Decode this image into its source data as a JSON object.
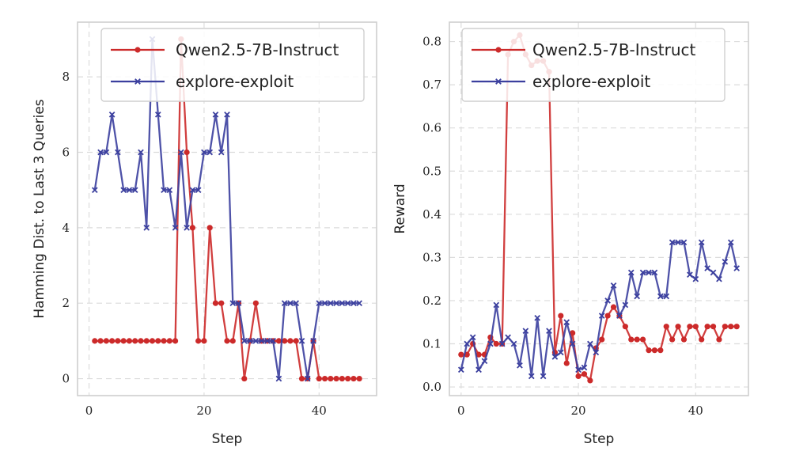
{
  "chart_data": [
    {
      "type": "line",
      "title": "",
      "xlabel": "Step",
      "ylabel": "Hamming Dist. to Last 3 Queries",
      "xlim": [
        -2,
        50
      ],
      "ylim": [
        -0.45,
        9.45
      ],
      "xticks": [
        0,
        20,
        40
      ],
      "yticks": [
        0,
        2,
        4,
        6,
        8
      ],
      "legend": "top-right",
      "series": [
        {
          "name": "Qwen2.5-7B-Instruct",
          "color": "#cc2a2a",
          "marker": "circle",
          "x": [
            1,
            2,
            3,
            4,
            5,
            6,
            7,
            8,
            9,
            10,
            11,
            12,
            13,
            14,
            15,
            16,
            17,
            18,
            19,
            20,
            21,
            22,
            23,
            24,
            25,
            26,
            27,
            28,
            29,
            30,
            31,
            32,
            33,
            34,
            35,
            36,
            37,
            38,
            39,
            40,
            41,
            42,
            43,
            44,
            45,
            46,
            47
          ],
          "values": [
            1,
            1,
            1,
            1,
            1,
            1,
            1,
            1,
            1,
            1,
            1,
            1,
            1,
            1,
            1,
            9,
            6,
            4,
            1,
            1,
            4,
            2,
            2,
            1,
            1,
            2,
            0,
            1,
            2,
            1,
            1,
            1,
            1,
            1,
            1,
            1,
            0,
            0,
            1,
            0,
            0,
            0,
            0,
            0,
            0,
            0,
            0
          ]
        },
        {
          "name": "explore-exploit",
          "color": "#3b3f9e",
          "marker": "x",
          "x": [
            1,
            2,
            3,
            4,
            5,
            6,
            7,
            8,
            9,
            10,
            11,
            12,
            13,
            14,
            15,
            16,
            17,
            18,
            19,
            20,
            21,
            22,
            23,
            24,
            25,
            26,
            27,
            28,
            29,
            30,
            31,
            32,
            33,
            34,
            35,
            36,
            37,
            38,
            39,
            40,
            41,
            42,
            43,
            44,
            45,
            46,
            47
          ],
          "values": [
            5,
            6,
            6,
            7,
            6,
            5,
            5,
            5,
            6,
            4,
            9,
            7,
            5,
            5,
            4,
            6,
            4,
            5,
            5,
            6,
            6,
            7,
            6,
            7,
            2,
            2,
            1,
            1,
            1,
            1,
            1,
            1,
            0,
            2,
            2,
            2,
            1,
            0,
            1,
            2,
            2,
            2,
            2,
            2,
            2,
            2,
            2
          ]
        }
      ]
    },
    {
      "type": "line",
      "title": "",
      "xlabel": "Step",
      "ylabel": "Reward",
      "xlim": [
        -2,
        49
      ],
      "ylim": [
        -0.02,
        0.845
      ],
      "xticks": [
        0,
        20,
        40
      ],
      "yticks": [
        0.0,
        0.1,
        0.2,
        0.3,
        0.4,
        0.5,
        0.6,
        0.7,
        0.8
      ],
      "legend": "top-right",
      "series": [
        {
          "name": "Qwen2.5-7B-Instruct",
          "color": "#cc2a2a",
          "marker": "circle",
          "x": [
            0,
            1,
            2,
            3,
            4,
            5,
            6,
            7,
            8,
            9,
            10,
            11,
            12,
            13,
            14,
            15,
            16,
            17,
            18,
            19,
            20,
            21,
            22,
            23,
            24,
            25,
            26,
            27,
            28,
            29,
            30,
            31,
            32,
            33,
            34,
            35,
            36,
            37,
            38,
            39,
            40,
            41,
            42,
            43,
            44,
            45,
            46,
            47
          ],
          "values": [
            0.075,
            0.075,
            0.1,
            0.075,
            0.075,
            0.115,
            0.1,
            0.1,
            0.77,
            0.8,
            0.815,
            0.77,
            0.745,
            0.755,
            0.755,
            0.73,
            0.08,
            0.165,
            0.055,
            0.125,
            0.025,
            0.03,
            0.015,
            0.09,
            0.11,
            0.165,
            0.185,
            0.165,
            0.14,
            0.11,
            0.11,
            0.11,
            0.085,
            0.085,
            0.085,
            0.14,
            0.11,
            0.14,
            0.11,
            0.14,
            0.14,
            0.11,
            0.14,
            0.14,
            0.11,
            0.14,
            0.14,
            0.14
          ]
        },
        {
          "name": "explore-exploit",
          "color": "#3b3f9e",
          "marker": "x",
          "x": [
            0,
            1,
            2,
            3,
            4,
            5,
            6,
            7,
            8,
            9,
            10,
            11,
            12,
            13,
            14,
            15,
            16,
            17,
            18,
            19,
            20,
            21,
            22,
            23,
            24,
            25,
            26,
            27,
            28,
            29,
            30,
            31,
            32,
            33,
            34,
            35,
            36,
            37,
            38,
            39,
            40,
            41,
            42,
            43,
            44,
            45,
            46,
            47
          ],
          "values": [
            0.04,
            0.1,
            0.115,
            0.04,
            0.06,
            0.1,
            0.19,
            0.1,
            0.115,
            0.1,
            0.05,
            0.13,
            0.025,
            0.16,
            0.025,
            0.13,
            0.07,
            0.08,
            0.15,
            0.1,
            0.04,
            0.045,
            0.1,
            0.08,
            0.165,
            0.2,
            0.235,
            0.165,
            0.19,
            0.265,
            0.21,
            0.265,
            0.265,
            0.265,
            0.21,
            0.21,
            0.335,
            0.335,
            0.335,
            0.26,
            0.25,
            0.335,
            0.275,
            0.265,
            0.25,
            0.29,
            0.335,
            0.275
          ]
        }
      ]
    }
  ]
}
